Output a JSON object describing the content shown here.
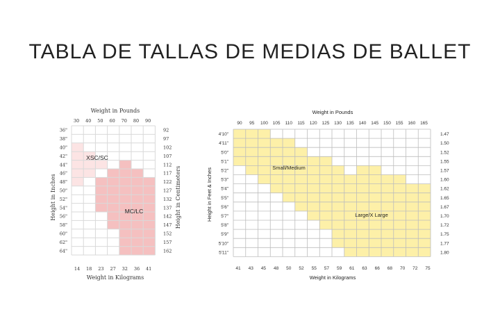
{
  "page": {
    "title": "TABLA DE TALLAS DE MEDIAS DE BALLET"
  },
  "chart_data": [
    {
      "type": "heatmap",
      "xlabel_top": "Weight in Pounds",
      "xlabel_bottom": "Weight in Kilograms",
      "ylabel_left": "Height in Inches",
      "ylabel_right": "Height in Centimeters",
      "x_top_ticks": [
        "30",
        "40",
        "50",
        "60",
        "70",
        "80",
        "90"
      ],
      "x_bottom_ticks": [
        "14",
        "18",
        "23",
        "27",
        "32",
        "36",
        "41"
      ],
      "y_left_ticks": [
        "36\"",
        "38\"",
        "40\"",
        "42\"",
        "44\"",
        "46\"",
        "48\"",
        "50\"",
        "52\"",
        "54\"",
        "56\"",
        "58\"",
        "60\"",
        "62\"",
        "64\""
      ],
      "y_right_ticks": [
        "92",
        "97",
        "102",
        "107",
        "112",
        "117",
        "122",
        "127",
        "132",
        "137",
        "142",
        "147",
        "152",
        "157",
        "162"
      ],
      "colors": {
        "light": "#fce4e4",
        "dark": "#f5c0c0",
        "grid": "#d9d9d9"
      },
      "regions": [
        {
          "label": "XSC/SC",
          "color": "light",
          "rows": [
            [
              0,
              0
            ],
            [
              0,
              0
            ],
            [
              0,
              1
            ],
            [
              0,
              2
            ],
            [
              0,
              3
            ],
            [
              0,
              2
            ],
            [
              0,
              1
            ],
            [
              0,
              0
            ],
            [
              0,
              0
            ],
            [
              0,
              0
            ],
            [
              0,
              0
            ],
            [
              0,
              0
            ],
            [
              0,
              0
            ],
            [
              0,
              0
            ],
            [
              0,
              0
            ]
          ]
        },
        {
          "label": "MC/LC",
          "color": "dark",
          "rows": [
            [
              0,
              0
            ],
            [
              0,
              0
            ],
            [
              0,
              0
            ],
            [
              0,
              0
            ],
            [
              4,
              4
            ],
            [
              3,
              5
            ],
            [
              2,
              6
            ],
            [
              2,
              6
            ],
            [
              2,
              6
            ],
            [
              2,
              6
            ],
            [
              3,
              6
            ],
            [
              3,
              6
            ],
            [
              4,
              6
            ],
            [
              4,
              6
            ],
            [
              4,
              6
            ]
          ]
        }
      ]
    },
    {
      "type": "heatmap",
      "xlabel_top": "Weight in Pounds",
      "xlabel_bottom": "Weight in Kilograms",
      "ylabel_left": "Height in Feet & Inches",
      "x_top_ticks": [
        "90",
        "95",
        "100",
        "105",
        "110",
        "115",
        "120",
        "125",
        "130",
        "135",
        "140",
        "145",
        "150",
        "155",
        "160",
        "165"
      ],
      "x_bottom_ticks": [
        "41",
        "43",
        "45",
        "48",
        "50",
        "52",
        "55",
        "57",
        "59",
        "61",
        "63",
        "66",
        "68",
        "70",
        "72",
        "75"
      ],
      "y_left_ticks": [
        "4'10\"",
        "4'11\"",
        "5'0\"",
        "5'1\"",
        "5'2\"",
        "5'3\"",
        "5'4\"",
        "5'5\"",
        "5'6\"",
        "5'7\"",
        "5'8\"",
        "5'9\"",
        "5'10\"",
        "5'11\""
      ],
      "y_right_ticks": [
        "1.47",
        "1.50",
        "1.52",
        "1.55",
        "1.57",
        "1.60",
        "1.62",
        "1.65",
        "1.67",
        "1.70",
        "1.72",
        "1.75",
        "1.77",
        "1.80"
      ],
      "colors": {
        "fill": "#fdf0a8",
        "grid": "#bdbdbd"
      },
      "regions": [
        {
          "label": "Small/Medium",
          "rows": [
            [
              0,
              2
            ],
            [
              0,
              4
            ],
            [
              0,
              5
            ],
            [
              0,
              7
            ],
            [
              1,
              8
            ],
            [
              2,
              8
            ],
            [
              3,
              9
            ],
            [
              4,
              9
            ],
            [
              5,
              9
            ],
            [
              6,
              8
            ],
            [
              7,
              7
            ],
            [
              -1,
              -1
            ],
            [
              -1,
              -1
            ],
            [
              -1,
              -1
            ]
          ]
        },
        {
          "label": "Large/X Large",
          "rows": [
            [
              -1,
              -1
            ],
            [
              -1,
              -1
            ],
            [
              -1,
              -1
            ],
            [
              -1,
              -1
            ],
            [
              10,
              11
            ],
            [
              9,
              13
            ],
            [
              10,
              15
            ],
            [
              10,
              15
            ],
            [
              10,
              15
            ],
            [
              9,
              15
            ],
            [
              8,
              15
            ],
            [
              8,
              15
            ],
            [
              8,
              15
            ],
            [
              9,
              15
            ]
          ]
        }
      ]
    }
  ]
}
